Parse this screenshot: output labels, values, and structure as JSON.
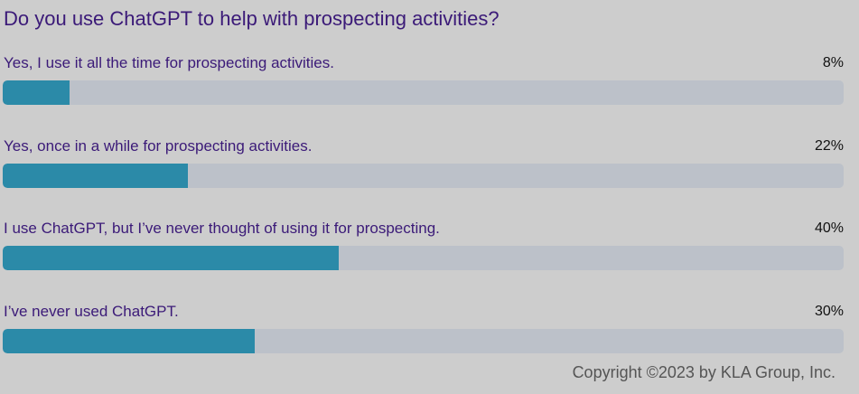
{
  "title": "Do you use ChatGPT to help with prospecting activities?",
  "copyright": "Copyright ©2023 by KLA Group, Inc.",
  "colors": {
    "background": "#cdcdcd",
    "track": "#bcc1c9",
    "fill": "#2b8aa8",
    "label": "#3b1a78"
  },
  "chart_data": {
    "type": "bar",
    "orientation": "horizontal",
    "title": "Do you use ChatGPT to help with prospecting activities?",
    "categories": [
      "Yes, I use it all the time for prospecting activities.",
      "Yes, once in a while for prospecting activities.",
      "I use ChatGPT, but I’ve never thought of using it for prospecting.",
      "I’ve never used ChatGPT."
    ],
    "values": [
      8,
      22,
      40,
      30
    ],
    "value_labels": [
      "8%",
      "22%",
      "40%",
      "30%"
    ],
    "unit": "%",
    "xlim": [
      0,
      100
    ]
  }
}
